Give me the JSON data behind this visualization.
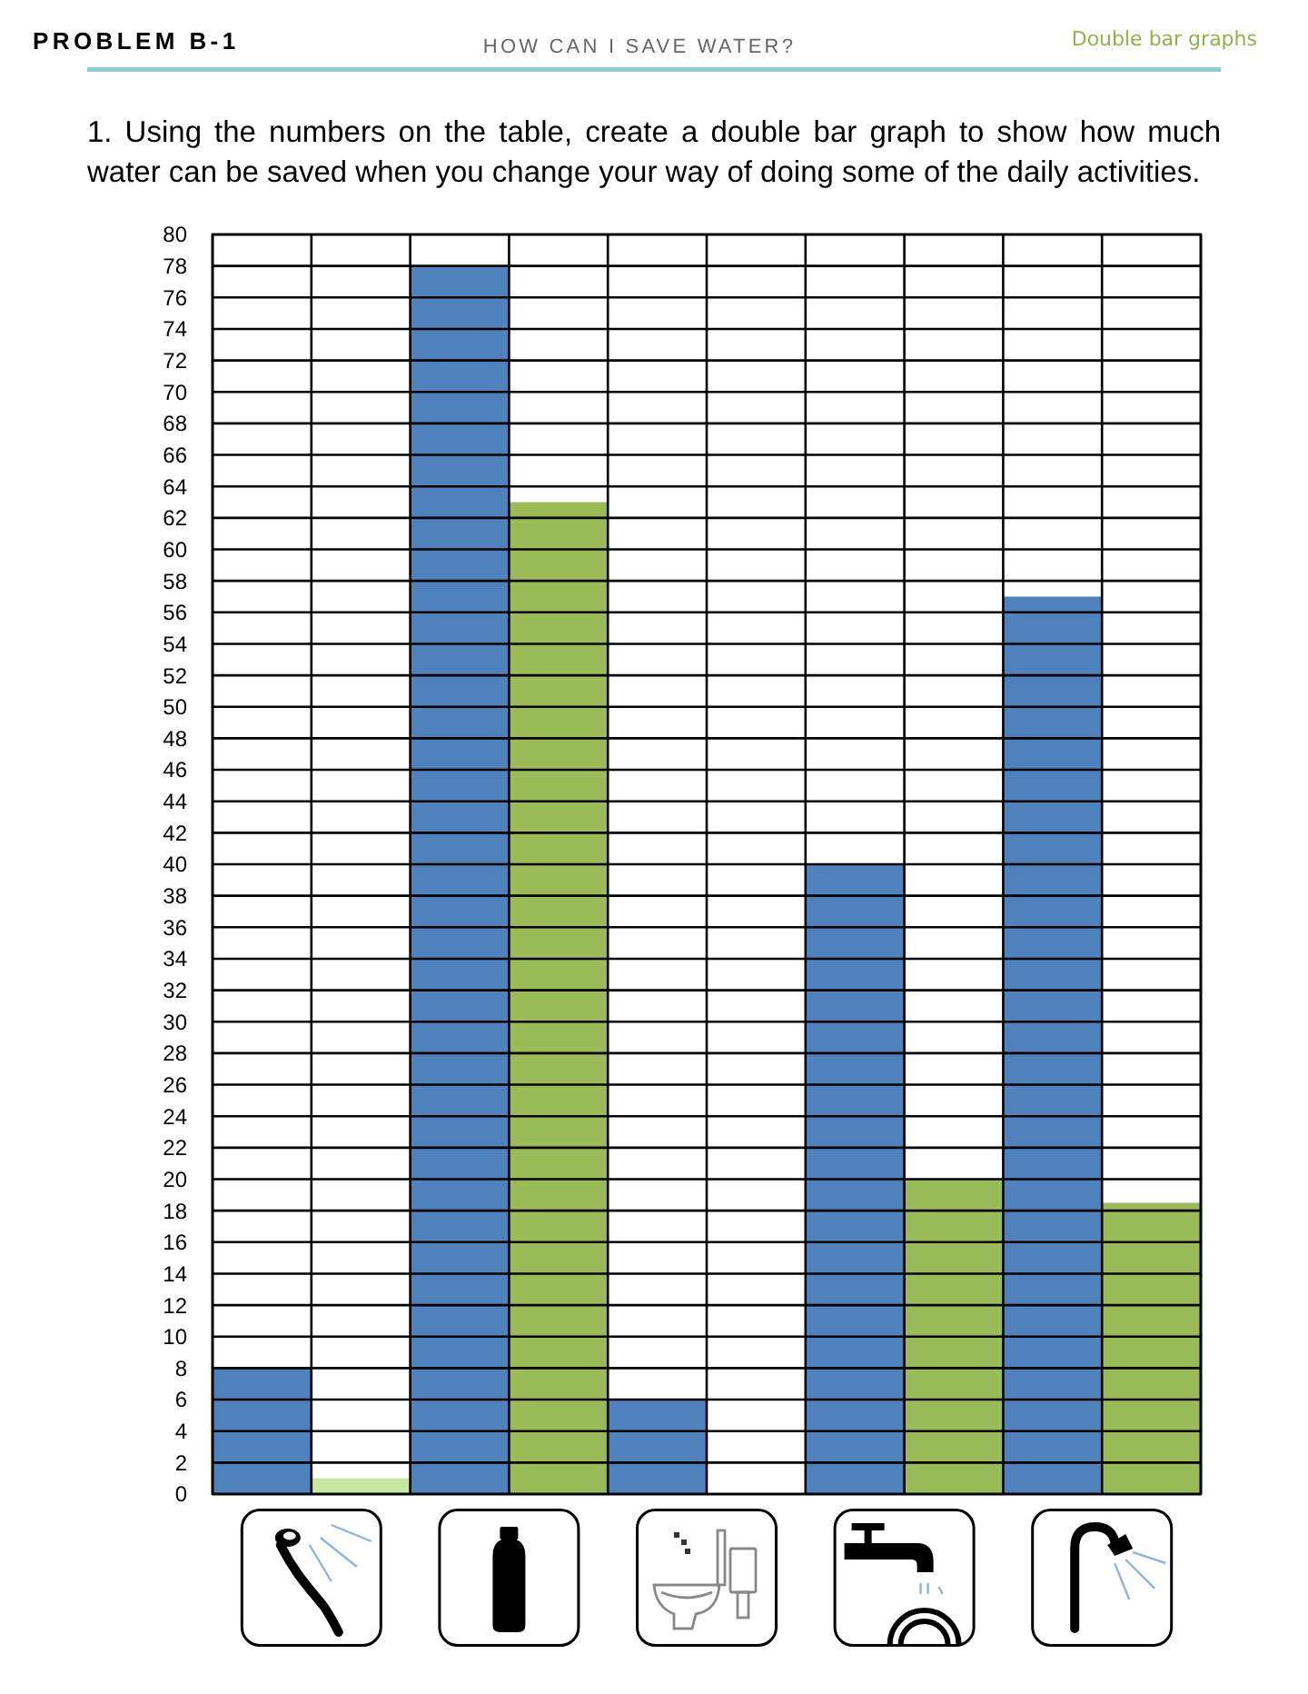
{
  "chart_data": {
    "type": "bar",
    "title": "HOW CAN I SAVE WATER?",
    "subtitle": "1. Using the numbers on the table, create a double bar graph to show how much water can be saved when you change your way of doing some of the daily activities.",
    "annotations": [
      "PROBLEM B-1",
      "Double bar graphs"
    ],
    "categories": [
      null,
      null,
      null,
      null,
      null
    ],
    "series": [
      {
        "color": "#4f81bd",
        "values": [
          8,
          78,
          6,
          40,
          57
        ]
      },
      {
        "color": "#9bbb59",
        "colors": [
          "#c6e8a0",
          null,
          null,
          null,
          null
        ],
        "values": [
          1,
          63,
          0,
          20,
          18.5
        ]
      }
    ],
    "ylim": [
      0,
      80
    ],
    "yticks": [
      0,
      2,
      4,
      6,
      8,
      10,
      12,
      14,
      16,
      18,
      20,
      22,
      24,
      26,
      28,
      30,
      32,
      34,
      36,
      38,
      40,
      42,
      44,
      46,
      48,
      50,
      52,
      54,
      56,
      58,
      60,
      62,
      64,
      66,
      68,
      70,
      72,
      74,
      76,
      78,
      80
    ],
    "grid": true
  }
}
